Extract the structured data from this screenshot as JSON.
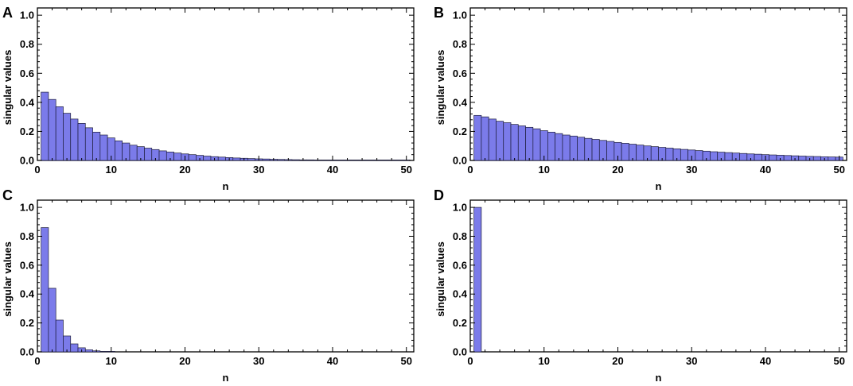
{
  "chart_data": [
    {
      "panel": "A",
      "type": "bar",
      "xlabel": "n",
      "ylabel": "singular values",
      "xlim": [
        0,
        51
      ],
      "ylim": [
        0,
        1.05
      ],
      "xticks": [
        "0",
        "10",
        "20",
        "30",
        "40",
        "50"
      ],
      "yticks": [
        "0.0",
        "0.2",
        "0.4",
        "0.6",
        "0.8",
        "1.0"
      ],
      "bar_color": "#7b7bea",
      "x": [
        1,
        2,
        3,
        4,
        5,
        6,
        7,
        8,
        9,
        10,
        11,
        12,
        13,
        14,
        15,
        16,
        17,
        18,
        19,
        20,
        21,
        22,
        23,
        24,
        25,
        26,
        27,
        28,
        29,
        30,
        31,
        32,
        33,
        34,
        35,
        36,
        37,
        38,
        39,
        40,
        41,
        42,
        43,
        44,
        45,
        46,
        47,
        48,
        49,
        50
      ],
      "values": [
        0.47,
        0.42,
        0.37,
        0.325,
        0.285,
        0.255,
        0.225,
        0.195,
        0.175,
        0.155,
        0.135,
        0.12,
        0.105,
        0.095,
        0.085,
        0.075,
        0.066,
        0.058,
        0.051,
        0.045,
        0.04,
        0.035,
        0.03,
        0.026,
        0.023,
        0.02,
        0.017,
        0.015,
        0.013,
        0.011,
        0.01,
        0.008,
        0.007,
        0.006,
        0.005,
        0.004,
        0.004,
        0.003,
        0.003,
        0.002,
        0.002,
        0.002,
        0.001,
        0.001,
        0.001,
        0.001,
        0.001,
        0.001,
        0.001,
        0.001
      ]
    },
    {
      "panel": "B",
      "type": "bar",
      "xlabel": "n",
      "ylabel": "singular values",
      "xlim": [
        0,
        51
      ],
      "ylim": [
        0,
        1.05
      ],
      "xticks": [
        "0",
        "10",
        "20",
        "30",
        "40",
        "50"
      ],
      "yticks": [
        "0.0",
        "0.2",
        "0.4",
        "0.6",
        "0.8",
        "1.0"
      ],
      "bar_color": "#7b7bea",
      "x": [
        1,
        2,
        3,
        4,
        5,
        6,
        7,
        8,
        9,
        10,
        11,
        12,
        13,
        14,
        15,
        16,
        17,
        18,
        19,
        20,
        21,
        22,
        23,
        24,
        25,
        26,
        27,
        28,
        29,
        30,
        31,
        32,
        33,
        34,
        35,
        36,
        37,
        38,
        39,
        40,
        41,
        42,
        43,
        44,
        45,
        46,
        47,
        48,
        49,
        50
      ],
      "values": [
        0.31,
        0.3,
        0.285,
        0.27,
        0.26,
        0.248,
        0.238,
        0.228,
        0.218,
        0.205,
        0.195,
        0.185,
        0.175,
        0.168,
        0.16,
        0.152,
        0.145,
        0.138,
        0.131,
        0.124,
        0.118,
        0.112,
        0.106,
        0.1,
        0.095,
        0.09,
        0.085,
        0.08,
        0.076,
        0.072,
        0.068,
        0.064,
        0.06,
        0.057,
        0.054,
        0.051,
        0.048,
        0.045,
        0.043,
        0.04,
        0.038,
        0.036,
        0.034,
        0.032,
        0.03,
        0.028,
        0.027,
        0.025,
        0.024,
        0.023
      ]
    },
    {
      "panel": "C",
      "type": "bar",
      "xlabel": "n",
      "ylabel": "singular values",
      "xlim": [
        0,
        51
      ],
      "ylim": [
        0,
        1.05
      ],
      "xticks": [
        "0",
        "10",
        "20",
        "30",
        "40",
        "50"
      ],
      "yticks": [
        "0.0",
        "0.2",
        "0.4",
        "0.6",
        "0.8",
        "1.0"
      ],
      "bar_color": "#7b7bea",
      "x": [
        1,
        2,
        3,
        4,
        5,
        6,
        7,
        8,
        9,
        10
      ],
      "values": [
        0.86,
        0.44,
        0.22,
        0.11,
        0.055,
        0.028,
        0.014,
        0.007,
        0.003,
        0.002
      ]
    },
    {
      "panel": "D",
      "type": "bar",
      "xlabel": "n",
      "ylabel": "singular values",
      "xlim": [
        0,
        51
      ],
      "ylim": [
        0,
        1.05
      ],
      "xticks": [
        "0",
        "10",
        "20",
        "30",
        "40",
        "50"
      ],
      "yticks": [
        "0.0",
        "0.2",
        "0.4",
        "0.6",
        "0.8",
        "1.0"
      ],
      "bar_color": "#7b7bea",
      "x": [
        1
      ],
      "values": [
        1.0
      ]
    }
  ]
}
